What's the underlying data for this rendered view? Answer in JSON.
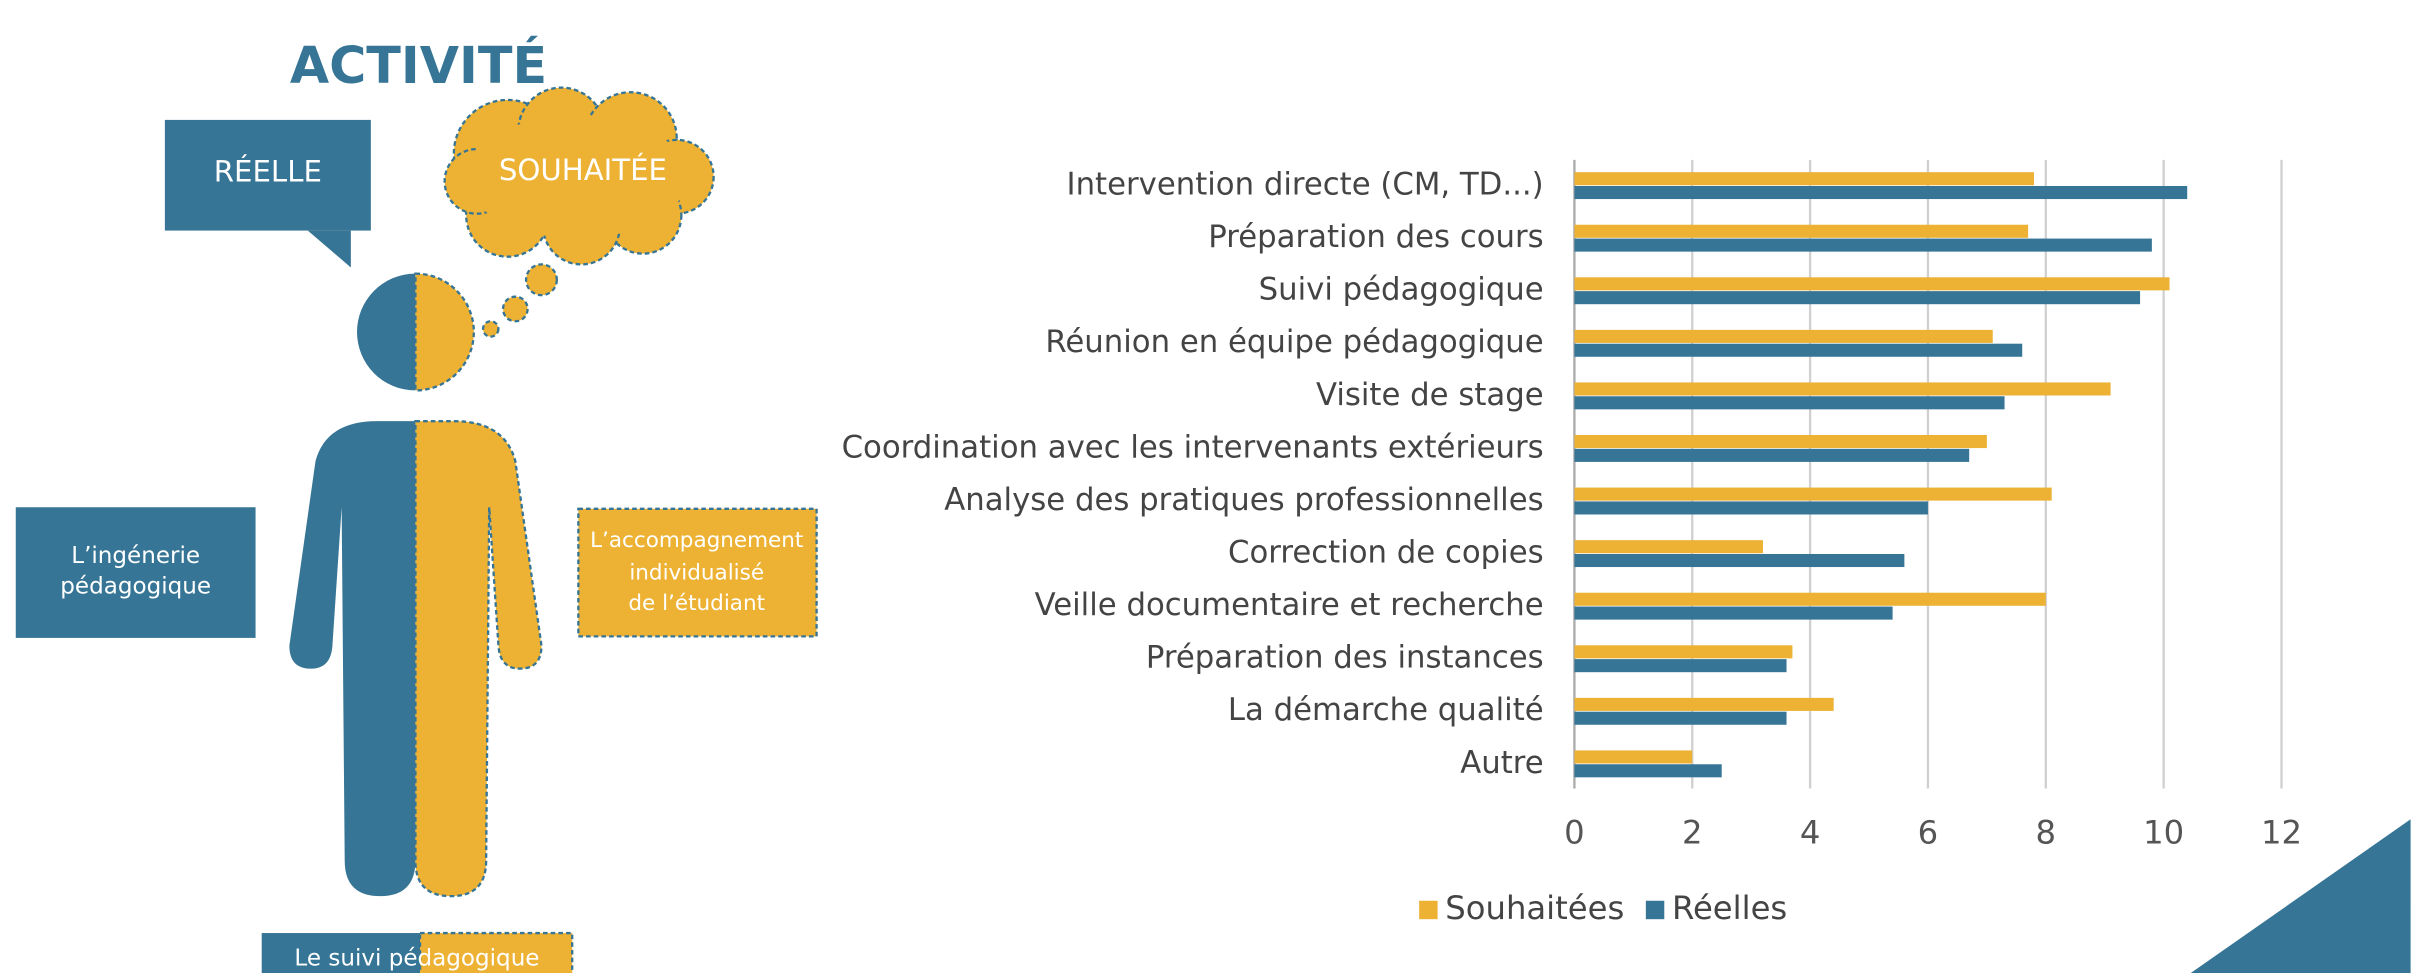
{
  "infographic": {
    "title": "ACTIVITÉ",
    "speech": "RÉELLE",
    "thought": "SOUHAITÉE",
    "left_box": [
      "L’ingénerie",
      "pédagogique"
    ],
    "right_box": [
      "L’accompagnement",
      "individualisé",
      "de l’étudiant"
    ],
    "bottom_box": "Le suivi pédagogique"
  },
  "chart_data": {
    "type": "hbar",
    "categories": [
      "Intervention directe (CM, TD...)",
      "Préparation des cours",
      "Suivi pédagogique",
      "Réunion en équipe pédagogique",
      "Visite de stage",
      "Coordination avec les intervenants extérieurs",
      "Analyse des pratiques professionnelles",
      "Correction de copies",
      "Veille documentaire et recherche",
      "Préparation des instances",
      "La démarche qualité",
      "Autre"
    ],
    "series": [
      {
        "name": "Souhaitées",
        "color": "#edb234",
        "values": [
          7.8,
          7.7,
          10.1,
          7.1,
          9.1,
          7.0,
          8.1,
          3.2,
          8.0,
          3.7,
          4.4,
          2.0
        ]
      },
      {
        "name": "Réelles",
        "color": "#367595",
        "values": [
          10.4,
          9.8,
          9.6,
          7.6,
          7.3,
          6.7,
          6.0,
          5.6,
          5.4,
          3.6,
          3.6,
          2.5
        ]
      }
    ],
    "xlim": [
      0,
      12
    ],
    "xticks": [
      0,
      2,
      4,
      6,
      8,
      10,
      12
    ],
    "grid": true,
    "legend": "bottom"
  }
}
